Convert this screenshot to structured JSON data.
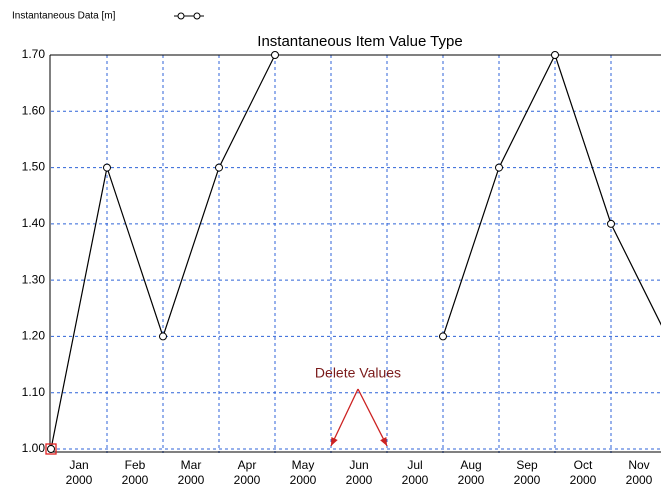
{
  "chart_data": {
    "type": "line",
    "title": "Instantaneous Item Value Type",
    "x": [
      "2000-01",
      "2000-02",
      "2000-03",
      "2000-04",
      "2000-05",
      "2000-06",
      "2000-07",
      "2000-08",
      "2000-09",
      "2000-10",
      "2000-11",
      "2000-12"
    ],
    "series": [
      {
        "name": "Instantaneous Data [m]",
        "color": "#000000",
        "values": [
          1.0,
          1.5,
          1.2,
          1.5,
          1.7,
          null,
          null,
          1.2,
          1.5,
          1.7,
          1.4,
          1.2
        ]
      }
    ],
    "xlim": [
      "2000-01",
      "2000-12"
    ],
    "xticks": [
      {
        "value": "2000-01",
        "label": "Jan 2000"
      },
      {
        "value": "2000-02",
        "label": "Feb 2000"
      },
      {
        "value": "2000-03",
        "label": "Mar 2000"
      },
      {
        "value": "2000-04",
        "label": "Apr 2000"
      },
      {
        "value": "2000-05",
        "label": "May 2000"
      },
      {
        "value": "2000-06",
        "label": "Jun 2000"
      },
      {
        "value": "2000-07",
        "label": "Jul 2000"
      },
      {
        "value": "2000-08",
        "label": "Aug 2000"
      },
      {
        "value": "2000-09",
        "label": "Sep 2000"
      },
      {
        "value": "2000-10",
        "label": "Oct 2000"
      },
      {
        "value": "2000-11",
        "label": "Nov 2000"
      }
    ],
    "ylim": [
      1.0,
      1.7
    ],
    "yticks": [
      {
        "value": 1.0,
        "label": "1.00"
      },
      {
        "value": 1.1,
        "label": "1.10"
      },
      {
        "value": 1.2,
        "label": "1.20"
      },
      {
        "value": 1.3,
        "label": "1.30"
      },
      {
        "value": 1.4,
        "label": "1.40"
      },
      {
        "value": 1.5,
        "label": "1.50"
      },
      {
        "value": 1.6,
        "label": "1.60"
      },
      {
        "value": 1.7,
        "label": "1.70"
      }
    ],
    "grid": true,
    "legend": "top-left",
    "annotation": "Delete Values",
    "annotation_color": "#cc2222"
  }
}
